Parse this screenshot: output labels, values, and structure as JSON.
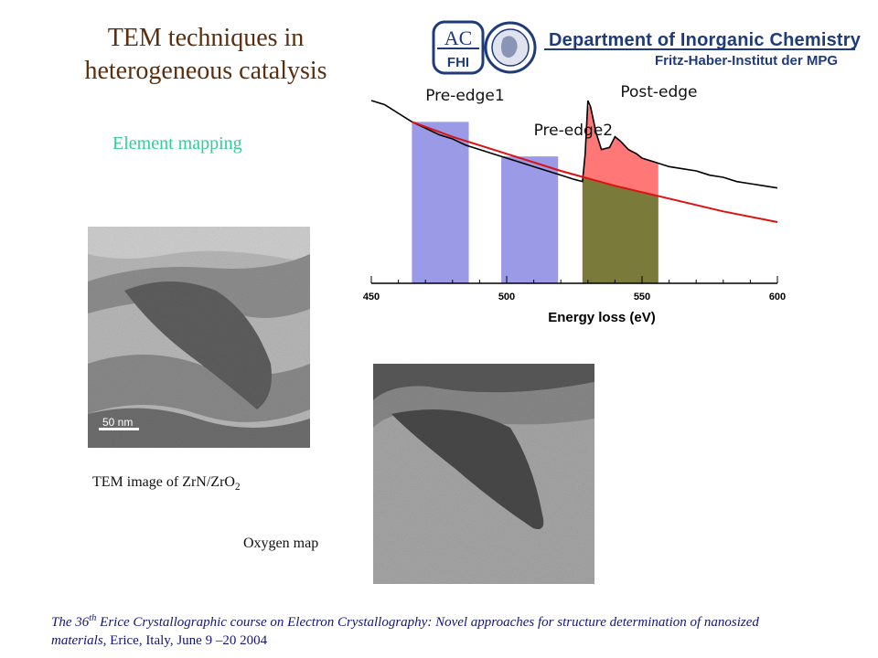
{
  "slide": {
    "title_line1": "TEM techniques in",
    "title_line2": "heterogeneous catalysis",
    "subtitle": "Element mapping"
  },
  "logo": {
    "badge_top": "AC",
    "badge_bottom": "FHI",
    "department": "Department of Inorganic Chemistry",
    "institute": "Fritz-Haber-Institut der MPG",
    "colors": {
      "primary": "#1f3b7a"
    }
  },
  "images": {
    "tem_scale_label": "50 nm",
    "tem_caption_main": "TEM image of ZrN/ZrO",
    "tem_caption_sub": "2",
    "oxygen_caption": "Oxygen map"
  },
  "footer": {
    "part1": "The 36",
    "sup": "th",
    "part2": " Erice Crystallographic course on Electron Crystallography: Novel approaches for structure determination of nanosized materials,",
    "part3": " Erice, Italy, June 9 –20 2004"
  },
  "chart_data": {
    "type": "line",
    "title": "",
    "xlabel": "Energy loss (eV)",
    "ylabel": "",
    "xlim": [
      450,
      600
    ],
    "xticks": [
      450,
      500,
      550,
      600
    ],
    "xtick_labels": [
      "450",
      "500",
      "550",
      "600"
    ],
    "grid": false,
    "windows": [
      {
        "name": "Pre-edge1",
        "x_start": 465,
        "x_end": 486,
        "color": "#9a9ae6"
      },
      {
        "name": "Pre-edge2",
        "x_start": 498,
        "x_end": 519,
        "color": "#9a9ae6"
      },
      {
        "name": "Post-edge",
        "x_start": 528,
        "x_end": 556,
        "color": "#ff7777",
        "background_color": "#7a7a3a"
      }
    ],
    "series": [
      {
        "color": "#000000",
        "x": [
          450,
          455,
          460,
          465,
          470,
          475,
          480,
          485,
          490,
          495,
          500,
          505,
          510,
          515,
          520,
          525,
          528,
          529,
          530,
          531,
          533,
          535,
          538,
          540,
          542,
          545,
          548,
          550,
          555,
          560,
          565,
          570,
          575,
          580,
          585,
          590,
          595,
          600
        ],
        "y": [
          100,
          98,
          94,
          90,
          87,
          84,
          82,
          79,
          77,
          75,
          73,
          71,
          69,
          67,
          65,
          63,
          62,
          75,
          100,
          97,
          85,
          77,
          78,
          83,
          81,
          77,
          75,
          73,
          71,
          69,
          68,
          67,
          65,
          64,
          62,
          61,
          60,
          59
        ]
      },
      {
        "color": "#dd1111",
        "x": [
          465,
          480,
          500,
          520,
          540,
          560,
          580,
          600
        ],
        "y": [
          90,
          83,
          75,
          67,
          60,
          54,
          48,
          43
        ]
      }
    ]
  }
}
